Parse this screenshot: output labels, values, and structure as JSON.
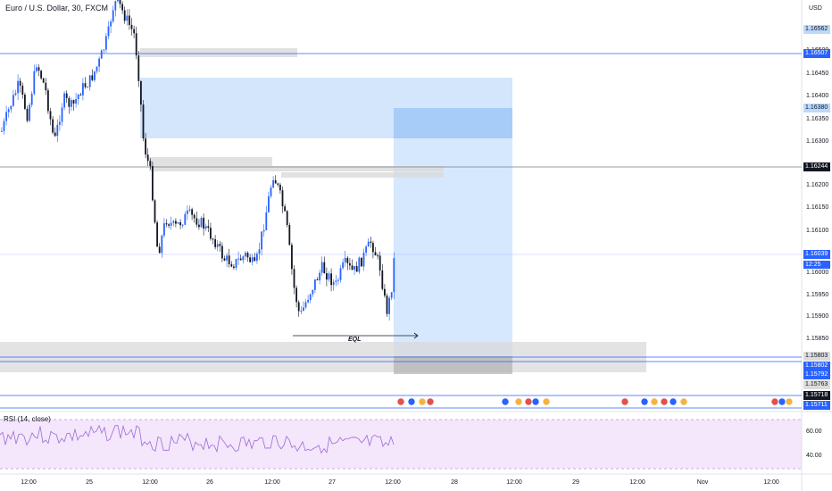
{
  "symbol_title": "Euro / U.S. Dollar, 30, FXCM",
  "currency": "USD",
  "rsi_label": "RSI (14, close)",
  "annotation_eql": "EQL",
  "countdown": "12:25",
  "price_axis_labels": [
    "1.16500",
    "1.16450",
    "1.16400",
    "1.16350",
    "1.16300",
    "1.16200",
    "1.16150",
    "1.16100",
    "1.16050",
    "1.16000",
    "1.15950",
    "1.15900",
    "1.15850"
  ],
  "rsi_axis_labels": [
    "60.00",
    "40.00"
  ],
  "time_axis_labels": [
    "12:00",
    "25",
    "12:00",
    "26",
    "12:00",
    "27",
    "12:00",
    "28",
    "12:00",
    "29",
    "12:00",
    "Nov",
    "12:00"
  ],
  "price_tags": [
    {
      "label": "1.16562",
      "bg": "#bbd9fb",
      "color": "#131722"
    },
    {
      "label": "1.16507",
      "bg": "#2962ff",
      "color": "#ffffff"
    },
    {
      "label": "1.16380",
      "bg": "#bbd9fb",
      "color": "#131722"
    },
    {
      "label": "1.16244",
      "bg": "#131722",
      "color": "#ffffff"
    },
    {
      "label": "1.16039",
      "bg": "#2962ff",
      "color": "#ffffff"
    },
    {
      "label": "1.15803",
      "bg": "#dcdcdc",
      "color": "#131722"
    },
    {
      "label": "1.15802",
      "bg": "#2962ff",
      "color": "#ffffff"
    },
    {
      "label": "1.15792",
      "bg": "#2962ff",
      "color": "#ffffff"
    },
    {
      "label": "1.15763",
      "bg": "#dcdcdc",
      "color": "#131722"
    },
    {
      "label": "1.15718",
      "bg": "#131722",
      "color": "#ffffff"
    },
    {
      "label": "1.15711",
      "bg": "#2962ff",
      "color": "#ffffff"
    }
  ],
  "colors": {
    "candle_up": "#2962ff",
    "candle_down": "#131722",
    "blue_zone": "#bbd9fb",
    "gray_zone": "#d9d9d9",
    "rsi_line": "#7e57c2",
    "rsi_band": "#f3e5f5",
    "level_line": "#2962ff"
  },
  "icons": [
    "economic-event-icon",
    "us-flag-icon",
    "eu-flag-icon",
    "globe-icon"
  ]
}
